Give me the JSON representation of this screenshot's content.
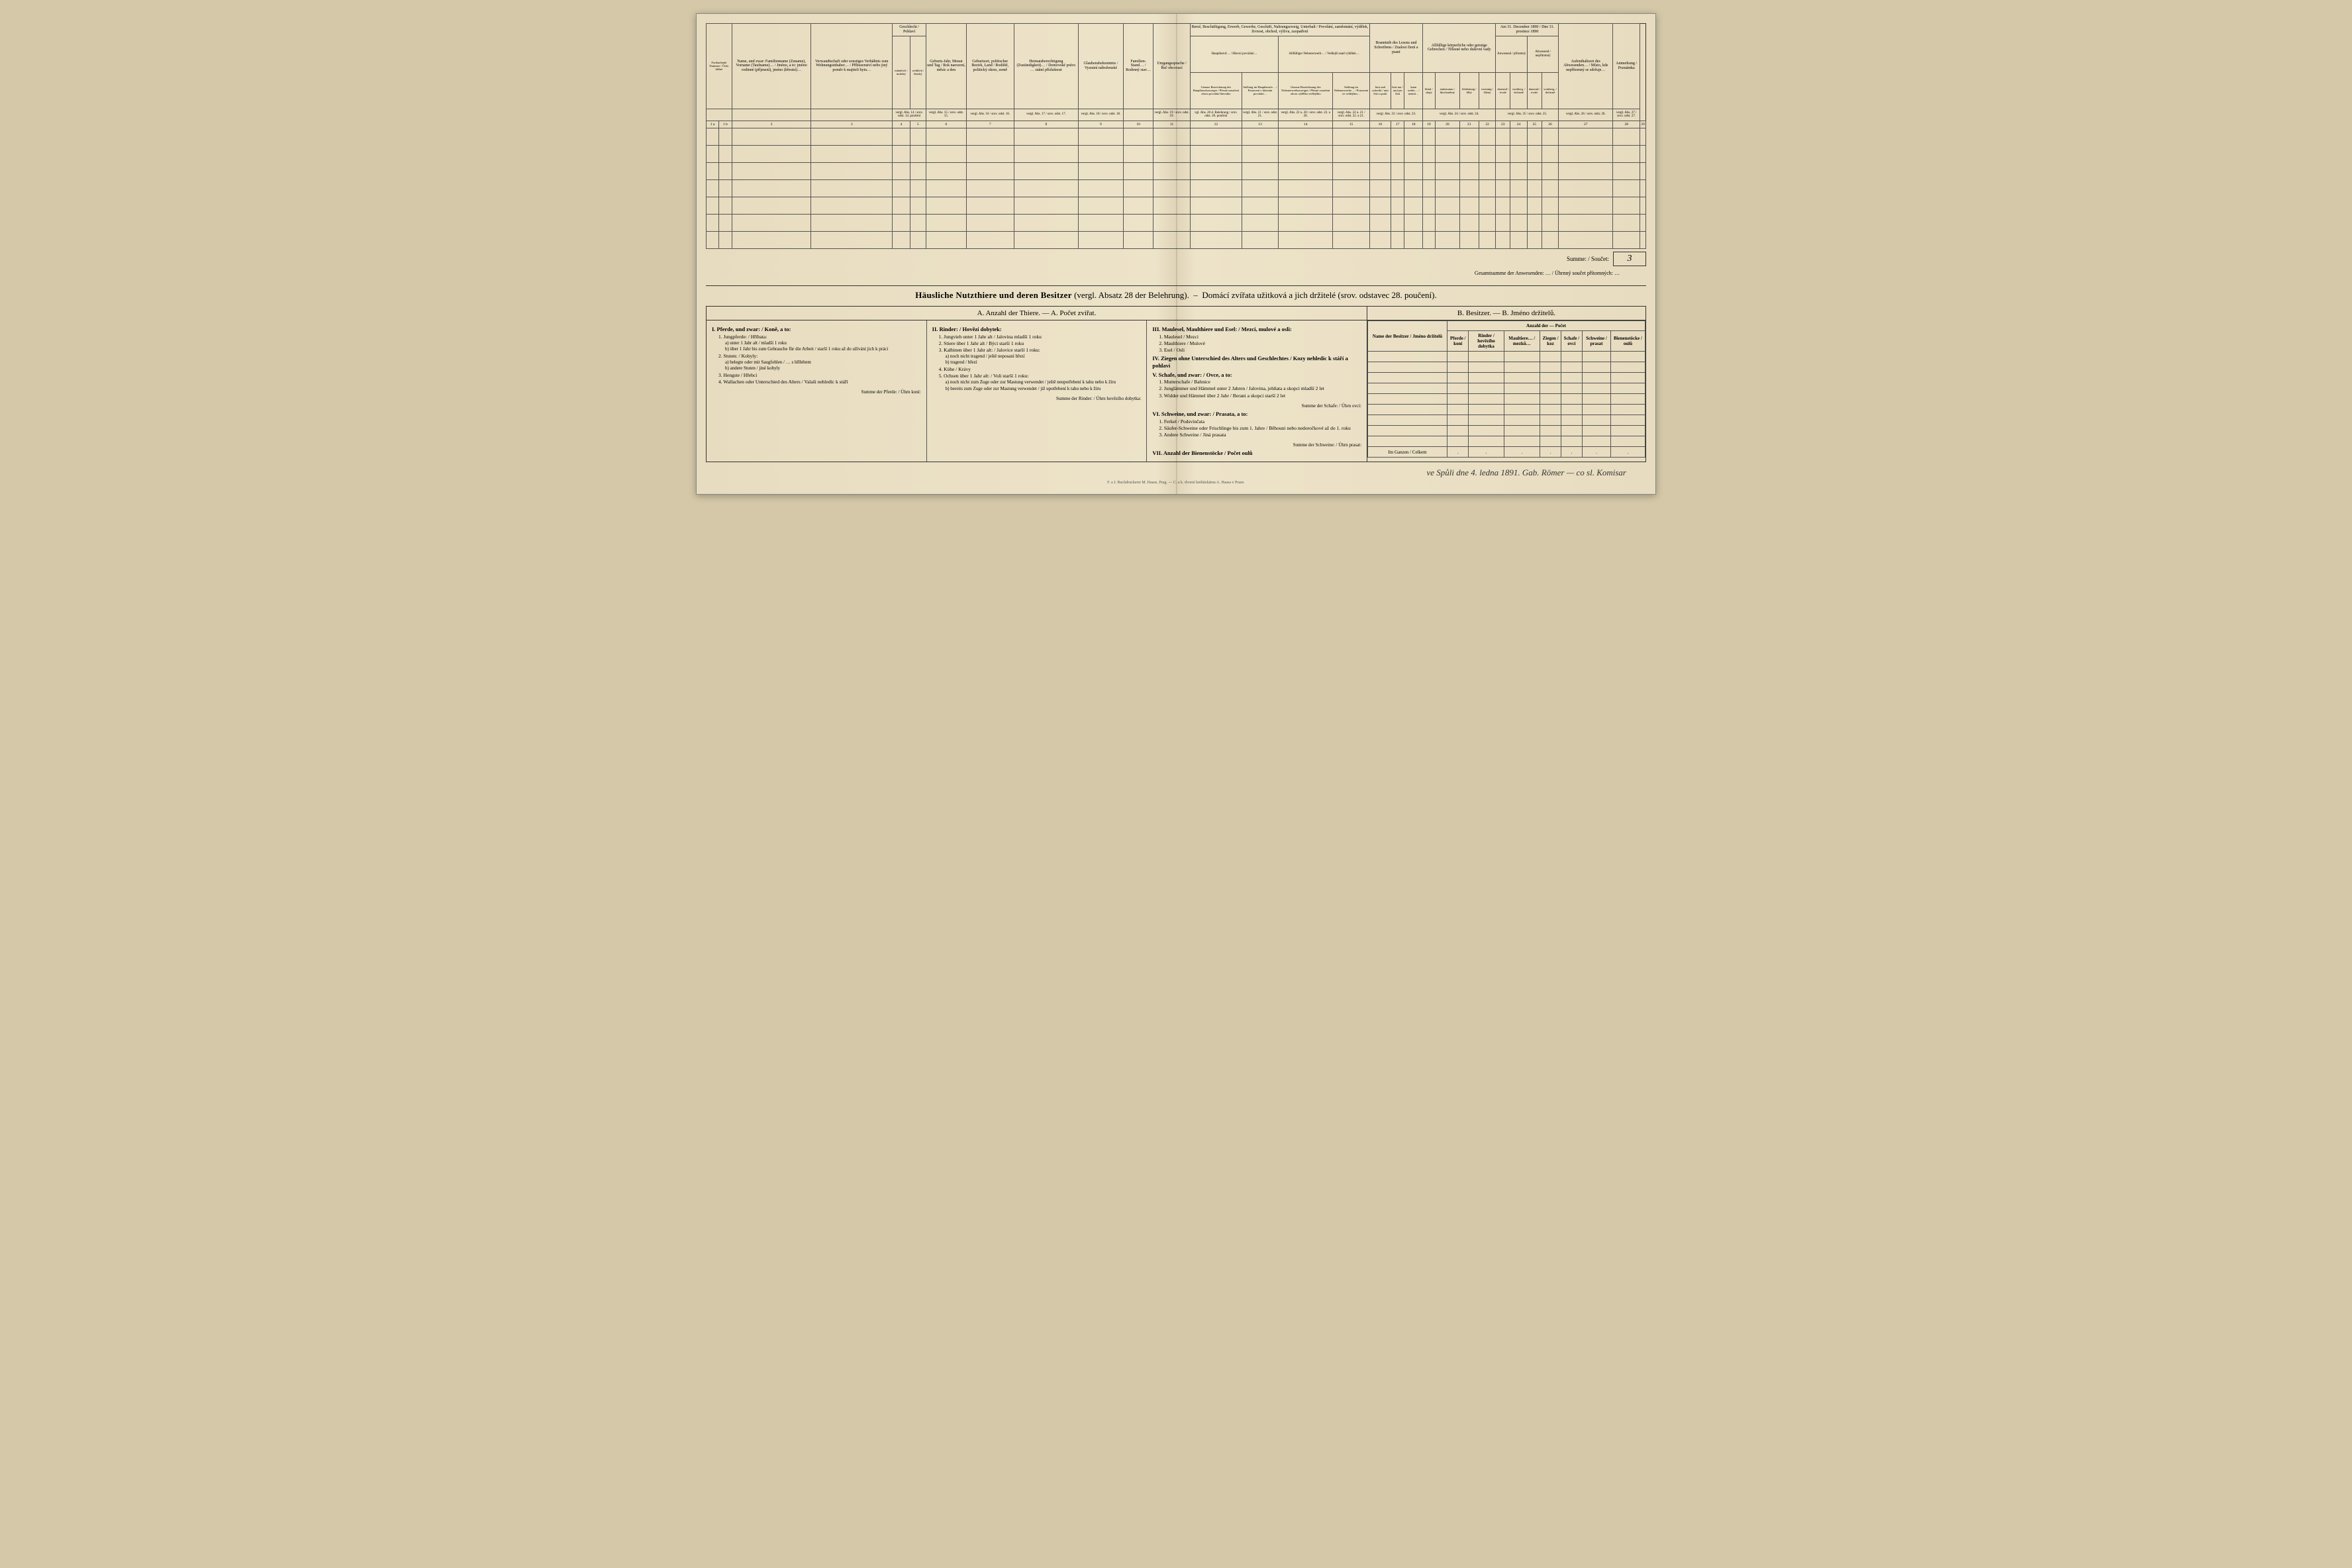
{
  "upper": {
    "group_headers": [
      "",
      "Name, und zwar: Familienname (Zuname), Vorname (Taufname)… / Jméno, a to: jméno rodinné (příjmení), jméno (křestní)…",
      "Verwandtschaft oder sonstiges Verhältnis zum Wohnungsinhaber… / Příbuzenství nebo jiný poměr k majiteli bytu…",
      "Geschlecht / Pohlaví",
      "Geburts-Jahr, Monat und Tag / Rok narození, měsíc a den",
      "Geburtsort, politischer Bezirk, Land / Rodiště, politický okres, země",
      "Heimatsberechtigung (Zuständigkeit)… / Domovské právo … státní příslušnost",
      "Glaubensbekenntnis / Vyznání náboženské",
      "Familien-Stand… / Rodinný stav…",
      "Umgangssprache / Řeč obcovací",
      "Beruf, Beschäftigung, Erwerb, Gewerbe, Geschäft, Nahrungszweig, Unterhalt / Povolání, zaměstnání, výdělek, živnost, obchod, výživa, zaopatření",
      "Branntnib des Lesens und Schreibens / Znalost čtení a psaní",
      "Allfällige körperliche oder geistige Gebrechen / Tělesné nebo duševní vady",
      "Am 31. December 1890 / Dne 31. prosince 1890",
      "Aufenthaltsort des Abwesenden… / Místo, kde nepřítomný se zdržuje…",
      "Anmerkung / Poznámka"
    ],
    "beruf_sub": {
      "haupt": "Hauptberuf… / Hlavní povolání…",
      "neben": "Allfälliger Nebenerwerb… / Vedlejší snad výdělek…",
      "h1": "Genaue Bezeichnung des Hauptberufszweiges / Přesné označení oboru povolání hlavního",
      "h2": "Stellung im Hauptberufe… / Postavení v hlavním povolání…",
      "n1": "Genaue Bezeichnung des Nebenerwerbszweiges / Přesné označení oboru výdělku vedlejšího",
      "n2": "Stellung im Nebenerwerbe… / Postavení ve vedlejším…"
    },
    "geschlecht": {
      "m": "männlich / mužský",
      "w": "weiblich / ženský"
    },
    "lesen": [
      "liest und schreibt / umí čísti a psáti",
      "liest nur / umí jen čísti",
      "kann weder… / neumí…"
    ],
    "gebrechen": [
      "blind / slepý",
      "taubstumm / hluchoněmý",
      "blödsinnig / blbý",
      "irrsinnig / šílený"
    ],
    "anwesend": {
      "a": "Anwesend / přítomný",
      "ab": "Abwesend / nepřítomný",
      "d": "dauernd / trvale",
      "v": "vorüberg. / dočasně"
    },
    "ref_row": [
      "vergl. Abs. 14 / srov. odst. 14. poučení",
      "vergl. Abs. 15 / srov. odst. 15.",
      "vergl. Abs. 16 / srov. odst. 16.",
      "vergl. Abs. 17 / srov. odst. 17.",
      "vergl. Abs. 18 / srov. odst. 18.",
      "",
      "vergl. Abs. 19 / srov. odst. 19.",
      "vgl. Abs. 20 d. Belehrung / srov. odst. 20. poučení",
      "vergl. Abs. 21 / srov. odst. 21.",
      "vergl. Abs. 22 u. 20 / srov. odst. 22. a 20.",
      "vergl. Abs. 22 u. 21 / srov. odst. 22. a 21.",
      "vergl. Abs. 23 / srov. odst. 23.",
      "vergl. Abs. 24 / srov. odst. 24.",
      "vergl. Abs. 25 / srov. odst. 25.",
      "vergl. Abs. 26 / srov. odst. 26.",
      "vergl. Abs. 27 / srov. odst. 27."
    ],
    "colnums": [
      "1 a",
      "1 b",
      "2",
      "3",
      "4",
      "5",
      "6",
      "7",
      "8",
      "9",
      "10",
      "11",
      "12",
      "13",
      "14",
      "15",
      "16",
      "17",
      "18",
      "19",
      "20",
      "21",
      "22",
      "23",
      "24",
      "25",
      "26",
      "27",
      "28",
      "29"
    ],
    "summe_label": "Summe: / Součet:",
    "summe_value": "3",
    "gesamt": "Gesamtsumme der Anwesenden: … / Úhrnný součet přítomných: …"
  },
  "livestock": {
    "title_de": "Häusliche Nutzthiere und deren Besitzer",
    "title_ref_de": "(vergl. Absatz 28 der Belehrung).",
    "title_cz": "Domácí zvířata užitková a jich držitelé",
    "title_ref_cz": "(srov. odstavec 28. poučení).",
    "a_title": "A. Anzahl der Thiere. — A. Počet zvířat.",
    "b_title": "B. Besitzer. — B. Jméno držitelů.",
    "col1": {
      "h": "I. Pferde, und zwar: / Koně, a to:",
      "items": [
        "1. Jungpferde: / Hříbata:",
        "a) unter 1 Jahr alt / mladší 1 roku",
        "b) über 1 Jahr bis zum Gebrauche für die Arbeit / starší 1 roku až do užívání jich k práci",
        "2. Stuten: / Kobyly:",
        "a) belegte oder mit Saugfohlen / … s hříbětem",
        "b) andere Stuten / jiné kobyly",
        "3. Hengste / Hřebci",
        "4. Wallachen oder Unterschied des Alters / Valaši nehledíc k stáří"
      ],
      "sum": "Summe der Pferde: / Úhrn koní:"
    },
    "col2": {
      "h": "II. Rinder: / Hovězí dobytek:",
      "items": [
        "1. Jungvieh unter 1 Jahr alt / Jalovina mladší 1 roku",
        "2. Stiere über 1 Jahr alt / Býci starší 1 roku",
        "3. Kalbinen über 1 Jahr alt: / Jalovice starší 1 roku:",
        "a) noch nicht tragend / ještě neposaní březí",
        "b) tragend / březí",
        "4. Kühe / Krávy",
        "5. Ochsen über 1 Jahr alt: / Voli starší 1 roku:",
        "a) noch nicht zum Zuge oder zur Mastung verwendet / ještě neupotřebení k tahu nebo k žíru",
        "b) bereits zum Zuge oder zur Mastung verwendet / již upotřebení k tahu nebo k žíru"
      ],
      "sum": "Summe der Rinder: / Úhrn hovězího dobytka:"
    },
    "col3": {
      "groups": [
        {
          "h": "III. Maulesel, Maulthiere und Esel: / Mezci, mulové a osli:",
          "items": [
            "1. Maulesel / Mezci",
            "2. Maulthiere / Mulové",
            "3. Esel / Osli"
          ]
        },
        {
          "h": "IV. Ziegen ohne Unterschied des Alters und Geschlechtes / Kozy nehledíc k stáří a pohlaví",
          "items": []
        },
        {
          "h": "V. Schafe, und zwar: / Ovce, a to:",
          "items": [
            "1. Mutterschafe / Bahnice",
            "2. Junglämmer und Hämmel unter 2 Jahren / Jalovina, jehňata a skopci mladší 2 let",
            "3. Widder und Hämmel über 2 Jahr / Berani a skopci starší 2 let"
          ],
          "sum": "Summe der Schafe: / Úhrn ovcí:"
        },
        {
          "h": "VI. Schweine, und zwar: / Prasata, a to:",
          "items": [
            "1. Ferkel / Podsvinčata",
            "2. Säufer-Schweine oder Frischlinge bis zum 1. Jahre / Běhouni nebo nedoročkové až do 1. roku",
            "3. Andere Schweine / Jiná prasata"
          ],
          "sum": "Summe der Schweine: / Úhrn prasat:"
        },
        {
          "h": "VII. Anzahl der Bienenstöcke / Počet oulů",
          "items": []
        }
      ]
    },
    "b": {
      "name_hdr": "Name der Besitzer / Jméno držitelů",
      "count_hdr": "Anzahl der — Počet",
      "cols": [
        "Pferde / koní",
        "Rinder / hovězího dobytka",
        "Maultiere… / mezků…",
        "Ziegen / koz",
        "Schafe / ovcí",
        "Schweine / prasat",
        "Bienenstöcke / oulů"
      ],
      "total": "Im Ganzen / Celkem"
    }
  },
  "signature": "ve Spůli dne 4. ledna 1891.    Gab. Römer — co sl. Komisar",
  "imprint": "F. a J. Buchdruckerei M. Haase, Prag. — C. a k. dvorní knihtiskárna A. Haasa v Praze."
}
